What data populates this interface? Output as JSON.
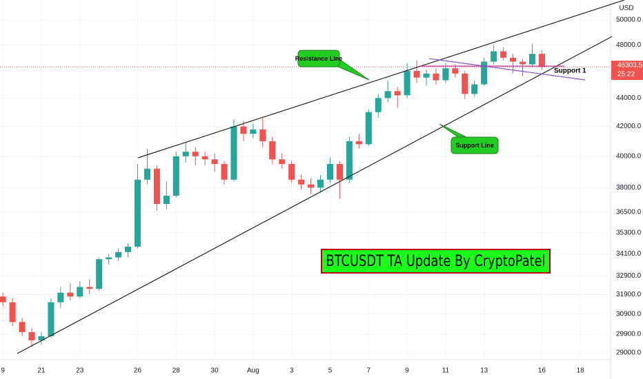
{
  "chart_data": {
    "type": "candlestick",
    "title": "BTCUSDT TA Update By CryptoPatel",
    "currency": "USD",
    "log_scale": true,
    "grid": true,
    "grid_color": "#f0f3fa",
    "up_color": "#26a69a",
    "down_color": "#ef5350",
    "last_price": 46303.5,
    "countdown": "25:22",
    "annotations": {
      "resistance": "Resistance Line",
      "support": "Support Line",
      "support_1": "Support 1"
    },
    "xlim": [
      18.85,
      50.57
    ],
    "xticks": [
      {
        "value": 19,
        "label": "9"
      },
      21,
      23,
      26,
      28,
      30,
      {
        "value": 32,
        "label": "Aug"
      },
      {
        "value": 34,
        "label": "3"
      },
      {
        "value": 36,
        "label": "5"
      },
      {
        "value": 38,
        "label": "7"
      },
      {
        "value": 40,
        "label": "9"
      },
      {
        "value": 42,
        "label": "11"
      },
      {
        "value": 44,
        "label": "13"
      },
      {
        "value": 47,
        "label": "16"
      },
      {
        "value": 49,
        "label": "18"
      }
    ],
    "ylim": [
      28675,
      51660
    ],
    "yticks": [
      {
        "value": 29000,
        "label": "29000.0"
      },
      {
        "value": 29900,
        "label": "29900.0"
      },
      {
        "value": 30900,
        "label": "30900.0"
      },
      {
        "value": 31900,
        "label": "31900.0"
      },
      {
        "value": 32900,
        "label": "32900.0"
      },
      {
        "value": 34100,
        "label": "34100.0"
      },
      {
        "value": 35300,
        "label": "35300.0"
      },
      {
        "value": 36500,
        "label": "36500.0"
      },
      {
        "value": 38000,
        "label": "38000.0"
      },
      {
        "value": 40000,
        "label": "40000.0"
      },
      {
        "value": 42000,
        "label": "42000.0"
      },
      {
        "value": 44000,
        "label": "44000.0"
      },
      {
        "value": 46000,
        "label": "46000.0"
      },
      {
        "value": 48000,
        "label": "48000.0"
      },
      {
        "value": 50000,
        "label": "50000.0"
      }
    ],
    "x": [
      19,
      19.5,
      20,
      20.5,
      21,
      21.5,
      22,
      22.5,
      23,
      23.5,
      24,
      24.5,
      25,
      25.5,
      26,
      26.5,
      27,
      27.5,
      28,
      28.5,
      29,
      29.5,
      30,
      30.5,
      31,
      31.5,
      32,
      32.5,
      33,
      33.5,
      34,
      34.5,
      35,
      35.5,
      36,
      36.5,
      37,
      37.5,
      38,
      38.5,
      39,
      39.5,
      40,
      40.5,
      41,
      41.5,
      42,
      42.5,
      43,
      43.5,
      44,
      44.5,
      45,
      45.5,
      46,
      46.5,
      47
    ],
    "open": [
      31800,
      31500,
      30500,
      30000,
      29600,
      29800,
      31500,
      32000,
      31800,
      32300,
      32200,
      33800,
      33900,
      34200,
      34500,
      38500,
      39200,
      37000,
      37500,
      40000,
      40300,
      40000,
      39800,
      39500,
      38500,
      42000,
      41500,
      41800,
      41000,
      39800,
      39500,
      38500,
      38200,
      38000,
      38500,
      39500,
      38500,
      41000,
      40800,
      43000,
      44000,
      44500,
      44200,
      46000,
      45500,
      45800,
      45300,
      46200,
      45800,
      44300,
      45000,
      46700,
      47500,
      47000,
      46700,
      46500,
      47300
    ],
    "high": [
      32000,
      31700,
      30700,
      30200,
      30000,
      31700,
      32300,
      32500,
      32600,
      32700,
      33900,
      34100,
      34400,
      34700,
      39500,
      40500,
      39400,
      38400,
      40300,
      40900,
      40600,
      40300,
      40200,
      39700,
      42500,
      42400,
      42200,
      42600,
      41300,
      40200,
      39700,
      38800,
      38600,
      38800,
      39900,
      39700,
      41300,
      41500,
      43200,
      44300,
      45300,
      44800,
      46600,
      46800,
      46100,
      46200,
      46600,
      46500,
      46000,
      45300,
      47000,
      48000,
      47800,
      47300,
      46900,
      48100,
      47600
    ],
    "low": [
      31300,
      30300,
      29800,
      29300,
      29400,
      29700,
      31200,
      31600,
      31700,
      31900,
      32100,
      33500,
      33700,
      33900,
      34400,
      38200,
      36600,
      36700,
      37400,
      39600,
      39400,
      39400,
      39000,
      38200,
      38400,
      41000,
      41200,
      40600,
      39500,
      39200,
      38300,
      37900,
      37600,
      37700,
      38300,
      37300,
      38300,
      40500,
      40700,
      42600,
      43700,
      43300,
      44000,
      45100,
      44900,
      45000,
      45100,
      45500,
      43900,
      44100,
      44900,
      46500,
      46800,
      45800,
      45600,
      46300,
      46100
    ],
    "close": [
      31500,
      30500,
      30000,
      29600,
      29800,
      31500,
      32000,
      31800,
      32300,
      32200,
      33800,
      33900,
      34200,
      34500,
      38500,
      39200,
      37000,
      37500,
      40000,
      40300,
      40000,
      39800,
      39500,
      38500,
      42000,
      41500,
      41800,
      41000,
      39800,
      39500,
      38500,
      38200,
      38000,
      38500,
      39500,
      38500,
      41000,
      40800,
      43000,
      44000,
      44500,
      44200,
      46000,
      45500,
      45800,
      45300,
      46200,
      45800,
      44300,
      45000,
      46700,
      47500,
      47000,
      46700,
      46500,
      47300,
      46303.5
    ]
  }
}
